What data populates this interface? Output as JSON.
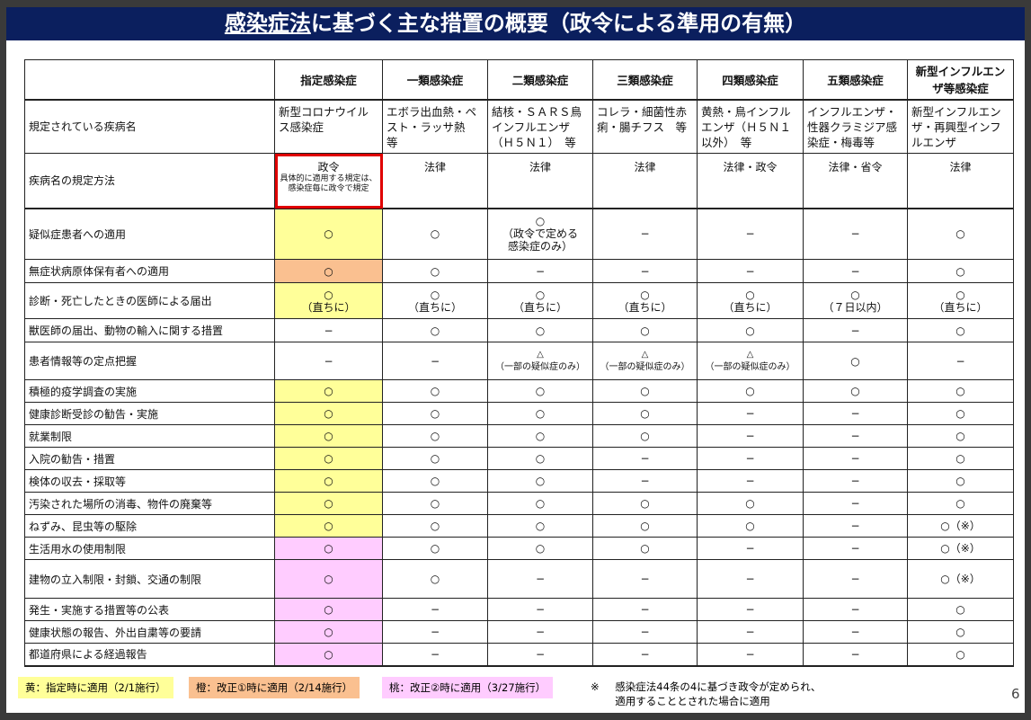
{
  "title": {
    "underlined": "感染症法",
    "rest": "に基づく主な措置の概要（政令による準用の有無）"
  },
  "colors": {
    "title_bg": "#0b1f5e",
    "yellow": "#ffff99",
    "orange": "#fac090",
    "pink": "#ffccff",
    "highlight_border": "#e00000"
  },
  "columns": [
    "",
    "指定感染症",
    "一類感染症",
    "二類感染症",
    "三類感染症",
    "四類感染症",
    "五類感染症",
    "新型インフルエンザ等感染症"
  ],
  "disease_row": {
    "label": "規定されている疾病名",
    "cells": [
      "新型コロナウイルス感染症",
      "エボラ出血熱・ペスト・ラッサ熱　等",
      "結核・ＳＡＲＳ鳥インフルエンザ（Ｈ５Ｎ１）　等",
      "コレラ・細菌性赤痢・腸チフス　等",
      "黄熱・鳥インフルエンザ（Ｈ５Ｎ１以外）　等",
      "インフルエンザ・性器クラミジア感染症・梅毒等",
      "新型インフルエンザ・再興型インフルエンザ"
    ]
  },
  "method_row": {
    "label": "疾病名の規定方法",
    "first_main": "政令",
    "first_sub": "具体的に適用する規定は、感染症毎に政令で規定",
    "cells": [
      "法律",
      "法律",
      "法律",
      "法律・政令",
      "法律・省令",
      "法律"
    ]
  },
  "rows": [
    {
      "label": "疑似症患者への適用",
      "color": "y",
      "cells": [
        "○",
        "○",
        "○\n（政令で定める\n感染症のみ）",
        "−",
        "−",
        "−",
        "○"
      ]
    },
    {
      "label": "無症状病原体保有者への適用",
      "color": "o",
      "cells": [
        "○",
        "○",
        "−",
        "−",
        "−",
        "−",
        "○"
      ]
    },
    {
      "label": "診断・死亡したときの医師による届出",
      "color": "y",
      "cells": [
        "○\n（直ちに）",
        "○\n（直ちに）",
        "○\n（直ちに）",
        "○\n（直ちに）",
        "○\n（直ちに）",
        "○\n（７日以内）",
        "○\n（直ちに）"
      ]
    },
    {
      "label": "獣医師の届出、動物の輸入に関する措置",
      "color": "",
      "cells": [
        "−",
        "○",
        "○",
        "○",
        "○",
        "−",
        "○"
      ]
    },
    {
      "label": "患者情報等の定点把握",
      "color": "",
      "cells": [
        "−",
        "−",
        "△\n（一部の疑似症のみ）",
        "△\n（一部の疑似症のみ）",
        "△\n（一部の疑似症のみ）",
        "○",
        "−"
      ]
    },
    {
      "label": "積極的疫学調査の実施",
      "color": "y",
      "cells": [
        "○",
        "○",
        "○",
        "○",
        "○",
        "○",
        "○"
      ]
    },
    {
      "label": "健康診断受診の勧告・実施",
      "color": "y",
      "cells": [
        "○",
        "○",
        "○",
        "○",
        "−",
        "−",
        "○"
      ]
    },
    {
      "label": "就業制限",
      "color": "y",
      "cells": [
        "○",
        "○",
        "○",
        "○",
        "−",
        "−",
        "○"
      ]
    },
    {
      "label": "入院の勧告・措置",
      "color": "y",
      "cells": [
        "○",
        "○",
        "○",
        "−",
        "−",
        "−",
        "○"
      ]
    },
    {
      "label": "検体の収去・採取等",
      "color": "y",
      "cells": [
        "○",
        "○",
        "○",
        "−",
        "−",
        "−",
        "○"
      ]
    },
    {
      "label": "汚染された場所の消毒、物件の廃棄等",
      "color": "y",
      "cells": [
        "○",
        "○",
        "○",
        "○",
        "○",
        "−",
        "○"
      ]
    },
    {
      "label": "ねずみ、昆虫等の駆除",
      "color": "y",
      "cells": [
        "○",
        "○",
        "○",
        "○",
        "○",
        "−",
        "○（※）"
      ]
    },
    {
      "label": "生活用水の使用制限",
      "color": "p",
      "cells": [
        "○",
        "○",
        "○",
        "○",
        "−",
        "−",
        "○（※）"
      ]
    },
    {
      "label": "建物の立入制限・封鎖、交通の制限",
      "color": "p",
      "cells": [
        "○",
        "○",
        "−",
        "−",
        "−",
        "−",
        "○（※）"
      ]
    },
    {
      "label": "発生・実施する措置等の公表",
      "color": "p",
      "cells": [
        "○",
        "−",
        "−",
        "−",
        "−",
        "−",
        "○"
      ]
    },
    {
      "label": "健康状態の報告、外出自粛等の要請",
      "color": "p",
      "cells": [
        "○",
        "−",
        "−",
        "−",
        "−",
        "−",
        "○"
      ]
    },
    {
      "label": "都道府県による経過報告",
      "color": "p",
      "cells": [
        "○",
        "−",
        "−",
        "−",
        "−",
        "−",
        "○"
      ]
    }
  ],
  "legend": [
    {
      "text": "黄：指定時に適用（2/1施行）",
      "color": "y"
    },
    {
      "text": "橙：改正①時に適用（2/14施行）",
      "color": "o"
    },
    {
      "text": "桃：改正②時に適用（3/27施行）",
      "color": "p"
    }
  ],
  "note": {
    "mark": "※",
    "line1": "感染症法44条の4に基づき政令が定められ、",
    "line2": "適用することとされた場合に適用"
  },
  "page_number": "6"
}
